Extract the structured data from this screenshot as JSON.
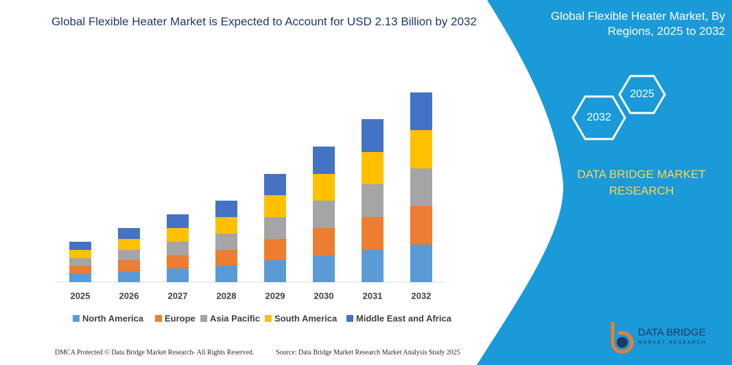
{
  "chart_data": {
    "type": "stacked-bar",
    "title": "Global Flexible Heater Market is Expected to Account for USD 2.13 Billion by 2032",
    "categories": [
      "2025",
      "2026",
      "2027",
      "2028",
      "2029",
      "2030",
      "2031",
      "2032"
    ],
    "series": [
      {
        "name": "North America",
        "color": "#5b9bd5",
        "values": [
          12,
          16,
          20,
          24,
          32,
          39,
          47,
          55
        ]
      },
      {
        "name": "Europe",
        "color": "#ed7d31",
        "values": [
          12,
          16,
          19,
          23,
          31,
          40,
          48,
          56
        ]
      },
      {
        "name": "Asia Pacific",
        "color": "#a5a5a5",
        "values": [
          11,
          15,
          20,
          24,
          32,
          40,
          48,
          55
        ]
      },
      {
        "name": "South America",
        "color": "#ffc000",
        "values": [
          12,
          16,
          20,
          24,
          32,
          39,
          47,
          56
        ]
      },
      {
        "name": "Middle East and Africa",
        "color": "#4472c4",
        "values": [
          12,
          16,
          20,
          24,
          31,
          40,
          48,
          55
        ]
      }
    ]
  },
  "panel": {
    "title": "Global Flexible Heater Market, By Regions, 2025 to 2032",
    "hexagons": [
      "2025",
      "2032"
    ],
    "brand": "DATA BRIDGE MARKET RESEARCH"
  },
  "footer": {
    "left": "DMCA Protected © Data Bridge Market Research- All Rights Reserved.",
    "right": "Source: Data Bridge Market Research Market Analysis Study 2025"
  },
  "logo": {
    "name": "DATA BRIDGE",
    "tagline": "MARKET RESEARCH"
  }
}
